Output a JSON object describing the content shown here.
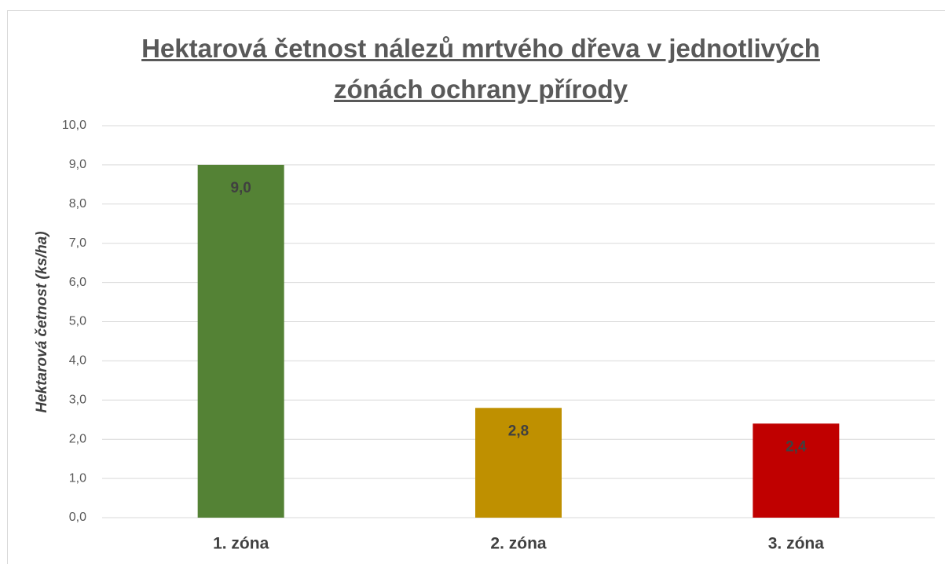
{
  "chart_data": {
    "type": "bar",
    "title": "Hektarová četnost nálezů mrtvého dřeva v jednotlivých zónách ochrany přírody",
    "y_label": "Hektarová četnost (ks/ha)",
    "categories": [
      "1. zóna",
      "2. zóna",
      "3. zóna"
    ],
    "values": [
      9.0,
      2.8,
      2.4
    ],
    "value_labels": [
      "9,0",
      "2,8",
      "2,4"
    ],
    "colors": [
      "#548235",
      "#bf9000",
      "#c00000"
    ],
    "ylim": [
      0,
      10
    ],
    "yticks": [
      {
        "value": 0,
        "label": "0,0"
      },
      {
        "value": 1,
        "label": "1,0"
      },
      {
        "value": 2,
        "label": "2,0"
      },
      {
        "value": 3,
        "label": "3,0"
      },
      {
        "value": 4,
        "label": "4,0"
      },
      {
        "value": 5,
        "label": "5,0"
      },
      {
        "value": 6,
        "label": "6,0"
      },
      {
        "value": 7,
        "label": "7,0"
      },
      {
        "value": 8,
        "label": "8,0"
      },
      {
        "value": 9,
        "label": "9,0"
      },
      {
        "value": 10,
        "label": "10,0"
      }
    ],
    "grid": true
  }
}
